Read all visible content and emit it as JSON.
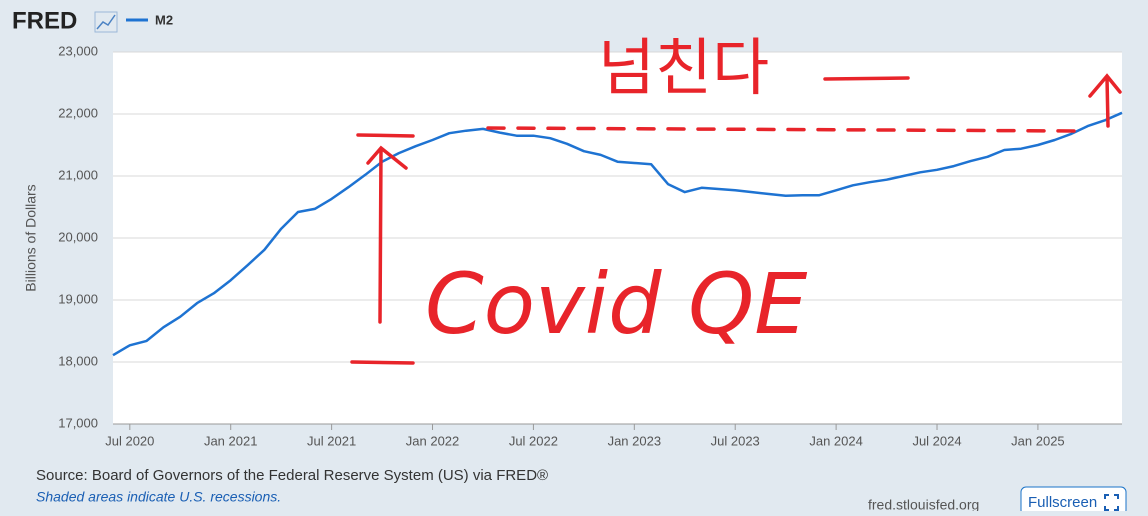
{
  "chart_data": {
    "type": "line",
    "brand": "FRED",
    "y_label": "Billions of Dollars",
    "x": [
      "2020-06",
      "2020-07",
      "2020-08",
      "2020-09",
      "2020-10",
      "2020-11",
      "2020-12",
      "2021-01",
      "2021-02",
      "2021-03",
      "2021-04",
      "2021-05",
      "2021-06",
      "2021-07",
      "2021-08",
      "2021-09",
      "2021-10",
      "2021-11",
      "2021-12",
      "2022-01",
      "2022-02",
      "2022-03",
      "2022-04",
      "2022-05",
      "2022-06",
      "2022-07",
      "2022-08",
      "2022-09",
      "2022-10",
      "2022-11",
      "2022-12",
      "2023-01",
      "2023-02",
      "2023-03",
      "2023-04",
      "2023-05",
      "2023-06",
      "2023-07",
      "2023-08",
      "2023-09",
      "2023-10",
      "2023-11",
      "2023-12",
      "2024-01",
      "2024-02",
      "2024-03",
      "2024-04",
      "2024-05",
      "2024-06",
      "2024-07",
      "2024-08",
      "2024-09",
      "2024-10",
      "2024-11",
      "2024-12",
      "2025-01",
      "2025-02",
      "2025-03",
      "2025-04",
      "2025-05",
      "2025-06"
    ],
    "series": [
      {
        "name": "M2",
        "color": "#1e73d2",
        "values": [
          18110,
          18270,
          18340,
          18560,
          18730,
          18950,
          19110,
          19320,
          19560,
          19810,
          20150,
          20420,
          20470,
          20630,
          20820,
          21020,
          21230,
          21370,
          21480,
          21580,
          21690,
          21730,
          21760,
          21700,
          21650,
          21650,
          21610,
          21520,
          21400,
          21340,
          21230,
          21210,
          21190,
          20870,
          20740,
          20810,
          20790,
          20770,
          20740,
          20710,
          20680,
          20690,
          20690,
          20770,
          20850,
          20900,
          20940,
          21000,
          21060,
          21100,
          21160,
          21240,
          21310,
          21420,
          21440,
          21500,
          21580,
          21680,
          21810,
          21900,
          22020
        ]
      }
    ],
    "xlim": [
      "2020-06",
      "2025-06"
    ],
    "xticks": [
      {
        "value": "2020-07",
        "label": "Jul 2020"
      },
      {
        "value": "2021-01",
        "label": "Jan 2021"
      },
      {
        "value": "2021-07",
        "label": "Jul 2021"
      },
      {
        "value": "2022-01",
        "label": "Jan 2022"
      },
      {
        "value": "2022-07",
        "label": "Jul 2022"
      },
      {
        "value": "2023-01",
        "label": "Jan 2023"
      },
      {
        "value": "2023-07",
        "label": "Jul 2023"
      },
      {
        "value": "2024-01",
        "label": "Jan 2024"
      },
      {
        "value": "2024-07",
        "label": "Jul 2024"
      },
      {
        "value": "2025-01",
        "label": "Jan 2025"
      }
    ],
    "ylim": [
      17000,
      23000
    ],
    "yticks": [
      {
        "value": 17000,
        "label": "17,000"
      },
      {
        "value": 18000,
        "label": "18,000"
      },
      {
        "value": 19000,
        "label": "19,000"
      },
      {
        "value": 20000,
        "label": "20,000"
      },
      {
        "value": 21000,
        "label": "21,000"
      },
      {
        "value": 22000,
        "label": "22,000"
      },
      {
        "value": 23000,
        "label": "23,000"
      }
    ],
    "grid": true,
    "annotations": [
      "넘친다",
      "Covid QE"
    ],
    "source": "Source: Board of Governors of the Federal Reserve System (US) via FRED®",
    "note": "Shaded areas indicate U.S. recessions.",
    "credit": "fred.stlouisfed.org",
    "button": "Fullscreen"
  }
}
